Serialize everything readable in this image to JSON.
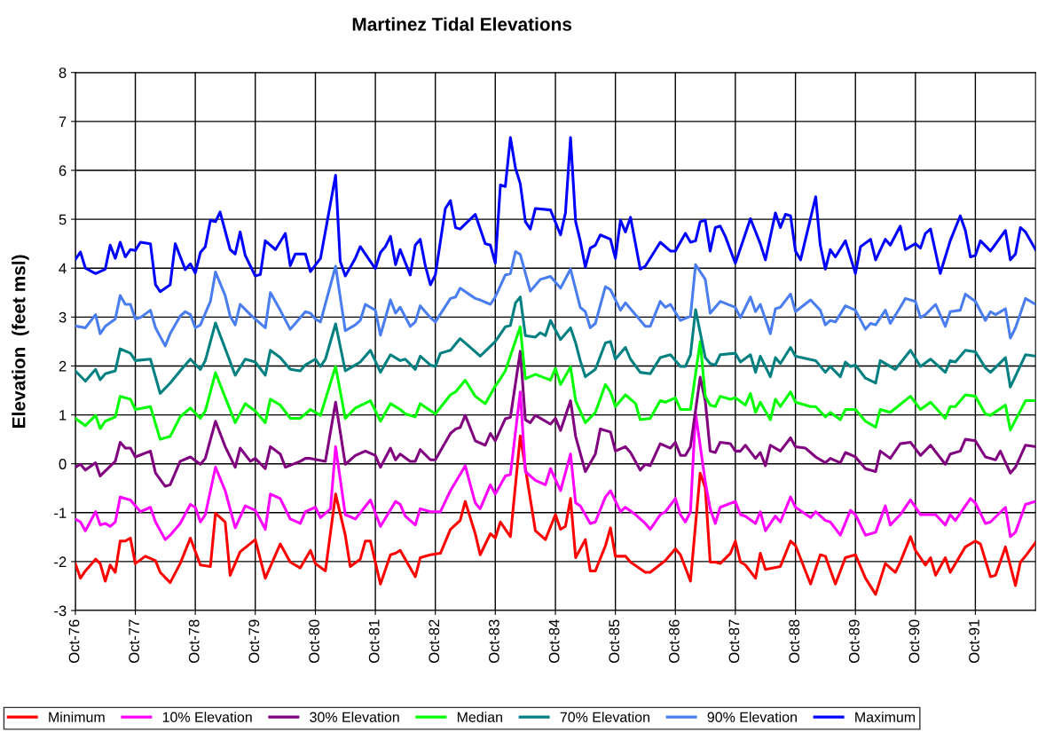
{
  "chart_data": {
    "type": "line",
    "title": "Martinez Tidal Elevations",
    "ylabel": "Elevation  (feet msl)",
    "xlim": [
      "1976-10",
      "1992-10"
    ],
    "xticks": [
      {
        "value": "1976-10",
        "label": "Oct-76"
      },
      {
        "value": "1977-10",
        "label": "Oct-77"
      },
      {
        "value": "1978-10",
        "label": "Oct-78"
      },
      {
        "value": "1979-10",
        "label": "Oct-79"
      },
      {
        "value": "1980-10",
        "label": "Oct-80"
      },
      {
        "value": "1981-10",
        "label": "Oct-81"
      },
      {
        "value": "1982-10",
        "label": "Oct-82"
      },
      {
        "value": "1983-10",
        "label": "Oct-83"
      },
      {
        "value": "1984-10",
        "label": "Oct-84"
      },
      {
        "value": "1985-10",
        "label": "Oct-85"
      },
      {
        "value": "1986-10",
        "label": "Oct-86"
      },
      {
        "value": "1987-10",
        "label": "Oct-87"
      },
      {
        "value": "1988-10",
        "label": "Oct-88"
      },
      {
        "value": "1989-10",
        "label": "Oct-89"
      },
      {
        "value": "1990-10",
        "label": "Oct-90"
      },
      {
        "value": "1991-10",
        "label": "Oct-91"
      }
    ],
    "ylim": [
      -3,
      8
    ],
    "yticks": [
      -3,
      -2,
      -1,
      0,
      1,
      2,
      3,
      4,
      5,
      6,
      7,
      8
    ],
    "grid": true,
    "legend": "bottom",
    "marker": "none",
    "line_style": "solid",
    "series": [
      {
        "name": "Minimum",
        "color": "#ff0000",
        "x": [
          "1976-10",
          "1976-11",
          "1976-12",
          "1977-02",
          "1977-03",
          "1977-04",
          "1977-05",
          "1977-06",
          "1977-07",
          "1977-08",
          "1977-09",
          "1977-10",
          "1977-12",
          "1978-02",
          "1978-03",
          "1978-05",
          "1978-07",
          "1978-09",
          "1978-11",
          "1979-01",
          "1979-02",
          "1979-04",
          "1979-05",
          "1979-07",
          "1979-10",
          "1979-12",
          "1980-03",
          "1980-05",
          "1980-07",
          "1980-09",
          "1980-10",
          "1980-12",
          "1981-02",
          "1981-04",
          "1981-05",
          "1981-07",
          "1981-08",
          "1981-09",
          "1981-11",
          "1982-01",
          "1982-02",
          "1982-03",
          "1982-06",
          "1982-07",
          "1982-09",
          "1982-11",
          "1983-01",
          "1983-03",
          "1983-04",
          "1983-06",
          "1983-07",
          "1983-09",
          "1983-10",
          "1983-11",
          "1984-01",
          "1984-03",
          "1984-06",
          "1984-08",
          "1984-10",
          "1984-11",
          "1984-12",
          "1985-01",
          "1985-02",
          "1985-04",
          "1985-05",
          "1985-06",
          "1985-08",
          "1985-09",
          "1985-10",
          "1985-12",
          "1986-01",
          "1986-04",
          "1986-05",
          "1986-08",
          "1986-10",
          "1986-11",
          "1987-01",
          "1987-03",
          "1987-04",
          "1987-05",
          "1987-06",
          "1987-07",
          "1987-09",
          "1987-10",
          "1987-11",
          "1987-12",
          "1988-02",
          "1988-03",
          "1988-04",
          "1988-07",
          "1988-09",
          "1988-10",
          "1989-01",
          "1989-03",
          "1989-04",
          "1989-06",
          "1989-08",
          "1989-10",
          "1989-12",
          "1990-02",
          "1990-04",
          "1990-06",
          "1990-07",
          "1990-09",
          "1990-10",
          "1990-12",
          "1991-01",
          "1991-02",
          "1991-04",
          "1991-05",
          "1991-08",
          "1991-10",
          "1991-11",
          "1992-01",
          "1992-02",
          "1992-04",
          "1992-06",
          "1992-07",
          "1992-08",
          "1992-10"
        ],
        "values": [
          -2.04,
          -2.34,
          -2.19,
          -1.95,
          -2.04,
          -2.4,
          -2.07,
          -2.22,
          -1.58,
          -1.58,
          -1.52,
          -2.04,
          -1.89,
          -1.98,
          -2.22,
          -2.43,
          -2.04,
          -1.52,
          -2.07,
          -2.1,
          -1.01,
          -1.19,
          -2.28,
          -1.8,
          -1.55,
          -2.34,
          -1.64,
          -2.01,
          -2.13,
          -1.77,
          -2.04,
          -2.19,
          -0.62,
          -1.46,
          -2.1,
          -1.95,
          -1.58,
          -1.58,
          -2.46,
          -1.86,
          -1.83,
          -1.77,
          -2.31,
          -1.92,
          -1.86,
          -1.83,
          -1.34,
          -1.16,
          -0.77,
          -1.43,
          -1.86,
          -1.43,
          -1.52,
          -1.19,
          -1.49,
          0.57,
          -1.37,
          -1.55,
          -1.04,
          -1.34,
          -1.28,
          -0.71,
          -1.92,
          -1.55,
          -2.19,
          -2.19,
          -1.68,
          -1.31,
          -1.89,
          -1.89,
          -2.01,
          -2.22,
          -2.22,
          -1.98,
          -1.74,
          -1.86,
          -2.4,
          -0.19,
          -0.49,
          -2.01,
          -2.01,
          -2.04,
          -1.83,
          -1.58,
          -2.01,
          -2.07,
          -2.34,
          -1.83,
          -2.16,
          -2.1,
          -1.58,
          -1.67,
          -2.46,
          -1.86,
          -1.89,
          -2.46,
          -1.92,
          -1.86,
          -2.34,
          -2.67,
          -2.04,
          -2.22,
          -2.01,
          -1.49,
          -1.77,
          -2.07,
          -1.92,
          -2.28,
          -1.92,
          -2.22,
          -1.7,
          -1.58,
          -1.64,
          -2.31,
          -2.28,
          -1.7,
          -2.49,
          -2.01,
          -1.89,
          -1.61
        ]
      },
      {
        "name": "10% Elevation",
        "color": "#ff00ff",
        "x": [
          "1976-10",
          "1976-11",
          "1976-12",
          "1977-02",
          "1977-03",
          "1977-04",
          "1977-05",
          "1977-06",
          "1977-07",
          "1977-09",
          "1977-11",
          "1978-01",
          "1978-02",
          "1978-04",
          "1978-05",
          "1978-07",
          "1978-09",
          "1978-10",
          "1978-11",
          "1978-12",
          "1979-02",
          "1979-04",
          "1979-06",
          "1979-08",
          "1979-10",
          "1979-12",
          "1980-01",
          "1980-03",
          "1980-05",
          "1980-07",
          "1980-08",
          "1980-10",
          "1980-11",
          "1981-01",
          "1981-02",
          "1981-04",
          "1981-06",
          "1981-09",
          "1981-11",
          "1982-02",
          "1982-03",
          "1982-04",
          "1982-06",
          "1982-07",
          "1982-09",
          "1982-11",
          "1983-01",
          "1983-03",
          "1983-04",
          "1983-06",
          "1983-07",
          "1983-09",
          "1983-10",
          "1983-12",
          "1984-01",
          "1984-03",
          "1984-04",
          "1984-06",
          "1984-08",
          "1984-09",
          "1984-11",
          "1985-01",
          "1985-02",
          "1985-03",
          "1985-05",
          "1985-06",
          "1985-08",
          "1985-09",
          "1985-11",
          "1985-12",
          "1986-02",
          "1986-04",
          "1986-05",
          "1986-07",
          "1986-08",
          "1986-10",
          "1986-11",
          "1986-12",
          "1987-01",
          "1987-02",
          "1987-04",
          "1987-05",
          "1987-06",
          "1987-07",
          "1987-10",
          "1987-11",
          "1987-12",
          "1988-02",
          "1988-03",
          "1988-04",
          "1988-06",
          "1988-07",
          "1988-09",
          "1988-10",
          "1989-01",
          "1989-02",
          "1989-04",
          "1989-05",
          "1989-07",
          "1989-09",
          "1989-10",
          "1989-12",
          "1990-02",
          "1990-04",
          "1990-05",
          "1990-07",
          "1990-09",
          "1990-11",
          "1991-02",
          "1991-04",
          "1991-05",
          "1991-06",
          "1991-09",
          "1991-10",
          "1991-12",
          "1992-01",
          "1992-04",
          "1992-05",
          "1992-06",
          "1992-08",
          "1992-10"
        ],
        "values": [
          -1.13,
          -1.19,
          -1.37,
          -0.98,
          -1.25,
          -1.22,
          -1.28,
          -1.19,
          -0.68,
          -0.74,
          -0.98,
          -0.89,
          -1.19,
          -1.55,
          -1.46,
          -1.22,
          -0.83,
          -0.89,
          -1.19,
          -1.04,
          -0.07,
          -0.55,
          -1.31,
          -0.86,
          -0.95,
          -1.34,
          -0.62,
          -0.71,
          -1.13,
          -1.22,
          -0.98,
          -0.89,
          -1.1,
          -0.92,
          0.35,
          -1.04,
          -1.13,
          -0.74,
          -1.28,
          -0.77,
          -0.83,
          -1.07,
          -1.25,
          -0.92,
          -0.98,
          -0.98,
          -0.55,
          -0.22,
          -0.04,
          -0.8,
          -0.92,
          -0.43,
          -0.62,
          -0.25,
          -0.22,
          1.47,
          -0.16,
          -0.34,
          -0.43,
          -0.1,
          -0.55,
          0.2,
          -0.8,
          -0.86,
          -1.22,
          -1.19,
          -0.68,
          -0.55,
          -0.98,
          -0.89,
          -1.04,
          -1.22,
          -1.34,
          -1.04,
          -0.98,
          -0.71,
          -1.04,
          -1.19,
          -0.98,
          1.04,
          -0.37,
          -0.92,
          -1.22,
          -0.89,
          -0.77,
          -1.04,
          -1.07,
          -1.22,
          -0.98,
          -1.37,
          -1.07,
          -1.19,
          -0.68,
          -0.89,
          -1.1,
          -0.98,
          -1.16,
          -1.19,
          -1.46,
          -0.95,
          -1.04,
          -1.46,
          -1.4,
          -0.86,
          -1.25,
          -1.04,
          -0.74,
          -1.04,
          -1.04,
          -1.25,
          -1.04,
          -1.16,
          -0.71,
          -0.8,
          -1.22,
          -1.19,
          -0.89,
          -1.49,
          -1.4,
          -0.83,
          -0.77
        ]
      },
      {
        "name": "30% Elevation",
        "color": "#800080",
        "x": [
          "1976-10",
          "1976-11",
          "1976-12",
          "1977-02",
          "1977-03",
          "1977-06",
          "1977-07",
          "1977-08",
          "1977-09",
          "1977-10",
          "1978-01",
          "1978-02",
          "1978-04",
          "1978-05",
          "1978-07",
          "1978-09",
          "1978-11",
          "1978-12",
          "1979-02",
          "1979-04",
          "1979-06",
          "1979-07",
          "1979-09",
          "1979-10",
          "1979-12",
          "1980-01",
          "1980-03",
          "1980-04",
          "1980-07",
          "1980-08",
          "1980-09",
          "1980-12",
          "1981-02",
          "1981-04",
          "1981-06",
          "1981-08",
          "1981-10",
          "1981-11",
          "1982-01",
          "1982-02",
          "1982-03",
          "1982-05",
          "1982-06",
          "1982-07",
          "1982-09",
          "1982-10",
          "1983-01",
          "1983-02",
          "1983-03",
          "1983-04",
          "1983-06",
          "1983-08",
          "1983-09",
          "1983-10",
          "1983-12",
          "1984-01",
          "1984-03",
          "1984-04",
          "1984-05",
          "1984-06",
          "1984-09",
          "1984-10",
          "1984-11",
          "1985-01",
          "1985-02",
          "1985-04",
          "1985-06",
          "1985-07",
          "1985-09",
          "1985-10",
          "1985-12",
          "1986-01",
          "1986-03",
          "1986-04",
          "1986-05",
          "1986-07",
          "1986-09",
          "1986-10",
          "1986-11",
          "1986-12",
          "1987-01",
          "1987-03",
          "1987-04",
          "1987-05",
          "1987-06",
          "1987-07",
          "1987-09",
          "1987-10",
          "1987-11",
          "1987-12",
          "1988-02",
          "1988-03",
          "1988-04",
          "1988-05",
          "1988-07",
          "1988-09",
          "1988-10",
          "1988-12",
          "1989-01",
          "1989-02",
          "1989-04",
          "1989-05",
          "1989-07",
          "1989-08",
          "1989-10",
          "1989-12",
          "1990-02",
          "1990-03",
          "1990-05",
          "1990-07",
          "1990-09",
          "1990-11",
          "1991-01",
          "1991-04",
          "1991-05",
          "1991-07",
          "1991-08",
          "1991-10",
          "1991-12",
          "1992-01",
          "1992-02",
          "1992-03",
          "1992-05",
          "1992-06",
          "1992-08",
          "1992-10"
        ],
        "values": [
          -0.07,
          -0.01,
          -0.13,
          0.02,
          -0.25,
          0.05,
          0.44,
          0.32,
          0.32,
          0.14,
          0.26,
          -0.19,
          -0.46,
          -0.43,
          0.05,
          0.14,
          -0.01,
          0.11,
          0.87,
          0.35,
          -0.07,
          0.32,
          0.05,
          0.11,
          -0.1,
          0.35,
          0.2,
          -0.07,
          0.05,
          0.11,
          0.11,
          0.05,
          1.26,
          -0.01,
          0.17,
          0.26,
          0.17,
          -0.07,
          0.32,
          0.08,
          0.2,
          0.05,
          0.05,
          0.29,
          0.08,
          0.08,
          0.62,
          0.71,
          0.74,
          0.99,
          0.47,
          0.38,
          0.62,
          0.47,
          0.92,
          0.95,
          2.3,
          0.9,
          0.84,
          0.99,
          0.81,
          0.93,
          0.68,
          1.29,
          0.56,
          -0.16,
          0.2,
          0.71,
          0.65,
          0.26,
          0.35,
          0.23,
          -0.13,
          -0.01,
          -0.04,
          0.41,
          0.32,
          0.44,
          0.17,
          0.17,
          0.35,
          1.77,
          1.29,
          0.26,
          0.23,
          0.44,
          0.41,
          0.26,
          0.26,
          0.38,
          0.11,
          0.23,
          -0.04,
          0.38,
          0.26,
          0.53,
          0.35,
          0.32,
          0.23,
          0.14,
          0.02,
          0.11,
          0.02,
          0.23,
          0.14,
          -0.1,
          -0.16,
          0.26,
          0.11,
          0.41,
          0.44,
          0.17,
          0.38,
          -0.01,
          0.2,
          0.26,
          0.5,
          0.47,
          0.14,
          0.11,
          0.08,
          0.26,
          -0.19,
          -0.07,
          0.38,
          0.35
        ]
      },
      {
        "name": "Median",
        "color": "#00ff00",
        "x": [
          "1976-10",
          "1976-12",
          "1977-02",
          "1977-03",
          "1977-04",
          "1977-06",
          "1977-07",
          "1977-09",
          "1977-10",
          "1978-01",
          "1978-03",
          "1978-05",
          "1978-07",
          "1978-09",
          "1978-11",
          "1978-12",
          "1979-02",
          "1979-06",
          "1979-08",
          "1979-10",
          "1979-12",
          "1980-01",
          "1980-03",
          "1980-05",
          "1980-07",
          "1980-09",
          "1980-11",
          "1981-02",
          "1981-04",
          "1981-06",
          "1981-09",
          "1981-11",
          "1982-01",
          "1982-03",
          "1982-04",
          "1982-06",
          "1982-07",
          "1982-10",
          "1983-01",
          "1983-02",
          "1983-04",
          "1983-06",
          "1983-08",
          "1983-10",
          "1983-11",
          "1983-12",
          "1984-03",
          "1984-04",
          "1984-06",
          "1984-09",
          "1984-10",
          "1984-11",
          "1985-01",
          "1985-02",
          "1985-04",
          "1985-06",
          "1985-08",
          "1985-09",
          "1985-10",
          "1985-12",
          "1986-02",
          "1986-03",
          "1986-05",
          "1986-07",
          "1986-08",
          "1986-10",
          "1986-11",
          "1987-01",
          "1987-03",
          "1987-04",
          "1987-05",
          "1987-06",
          "1987-07",
          "1987-09",
          "1987-10",
          "1987-12",
          "1988-01",
          "1988-02",
          "1988-03",
          "1988-05",
          "1988-06",
          "1988-07",
          "1988-09",
          "1988-10",
          "1989-01",
          "1989-02",
          "1989-04",
          "1989-05",
          "1989-07",
          "1989-08",
          "1989-10",
          "1989-12",
          "1990-02",
          "1990-03",
          "1990-05",
          "1990-09",
          "1990-11",
          "1991-01",
          "1991-04",
          "1991-05",
          "1991-06",
          "1991-08",
          "1991-10",
          "1991-12",
          "1992-01",
          "1992-04",
          "1992-05",
          "1992-08",
          "1992-10"
        ],
        "values": [
          0.93,
          0.78,
          0.99,
          0.72,
          0.87,
          0.96,
          1.38,
          1.32,
          1.11,
          1.17,
          0.5,
          0.56,
          0.96,
          1.14,
          0.93,
          1.08,
          1.86,
          0.84,
          1.23,
          1.08,
          0.84,
          1.32,
          1.2,
          0.93,
          0.93,
          1.11,
          0.99,
          1.99,
          0.93,
          1.14,
          1.29,
          0.87,
          1.23,
          1.11,
          1.02,
          0.96,
          1.23,
          1.02,
          1.41,
          1.47,
          1.71,
          1.38,
          1.23,
          1.59,
          1.74,
          1.9,
          2.8,
          1.74,
          1.83,
          1.71,
          1.95,
          1.62,
          1.98,
          1.29,
          0.84,
          1.05,
          1.62,
          1.47,
          1.17,
          1.41,
          1.23,
          0.9,
          0.93,
          1.29,
          1.26,
          1.35,
          1.11,
          1.11,
          2.5,
          1.38,
          1.2,
          1.17,
          1.38,
          1.32,
          1.35,
          1.2,
          1.44,
          1.05,
          1.26,
          0.9,
          1.32,
          1.17,
          1.47,
          1.26,
          1.17,
          1.17,
          0.96,
          1.05,
          0.9,
          1.11,
          1.11,
          0.87,
          0.75,
          1.11,
          1.05,
          1.38,
          1.11,
          1.26,
          0.93,
          1.17,
          1.17,
          1.41,
          1.38,
          1.02,
          0.99,
          1.2,
          0.69,
          1.29,
          1.29
        ]
      },
      {
        "name": "70% Elevation",
        "color": "#008080",
        "x": [
          "1976-10",
          "1976-12",
          "1977-02",
          "1977-03",
          "1977-04",
          "1977-06",
          "1977-07",
          "1977-09",
          "1977-10",
          "1978-01",
          "1978-03",
          "1978-05",
          "1978-07",
          "1978-09",
          "1978-11",
          "1978-12",
          "1979-02",
          "1979-06",
          "1979-08",
          "1979-10",
          "1979-12",
          "1980-01",
          "1980-03",
          "1980-05",
          "1980-07",
          "1980-08",
          "1980-10",
          "1980-11",
          "1980-12",
          "1981-02",
          "1981-04",
          "1981-06",
          "1981-07",
          "1981-09",
          "1981-11",
          "1982-01",
          "1982-03",
          "1982-04",
          "1982-06",
          "1982-07",
          "1982-09",
          "1982-10",
          "1982-11",
          "1983-01",
          "1983-03",
          "1983-06",
          "1983-07",
          "1983-10",
          "1983-12",
          "1984-01",
          "1984-02",
          "1984-03",
          "1984-04",
          "1984-06",
          "1984-07",
          "1984-08",
          "1984-09",
          "1984-11",
          "1985-01",
          "1985-02",
          "1985-03",
          "1985-04",
          "1985-06",
          "1985-08",
          "1985-09",
          "1985-10",
          "1985-12",
          "1986-01",
          "1986-03",
          "1986-05",
          "1986-07",
          "1986-09",
          "1986-11",
          "1986-12",
          "1987-01",
          "1987-02",
          "1987-04",
          "1987-05",
          "1987-06",
          "1987-07",
          "1987-10",
          "1987-11",
          "1988-01",
          "1988-02",
          "1988-03",
          "1988-05",
          "1988-06",
          "1988-07",
          "1988-09",
          "1988-10",
          "1989-02",
          "1989-04",
          "1989-05",
          "1989-07",
          "1989-08",
          "1989-09",
          "1989-10",
          "1989-12",
          "1990-02",
          "1990-03",
          "1990-06",
          "1990-09",
          "1990-11",
          "1991-01",
          "1991-04",
          "1991-05",
          "1991-06",
          "1991-08",
          "1991-10",
          "1991-12",
          "1992-01",
          "1992-04",
          "1992-05",
          "1992-08",
          "1992-10"
        ],
        "values": [
          1.9,
          1.69,
          1.93,
          1.72,
          1.84,
          1.9,
          2.35,
          2.26,
          2.11,
          2.14,
          1.44,
          1.65,
          1.9,
          2.14,
          1.93,
          2.11,
          2.88,
          1.81,
          2.14,
          2.08,
          1.81,
          2.32,
          2.17,
          1.93,
          1.9,
          2.02,
          2.14,
          1.99,
          2.14,
          2.86,
          1.9,
          2.02,
          2.08,
          2.32,
          1.87,
          2.23,
          2.11,
          2.14,
          1.93,
          2.2,
          2.02,
          1.99,
          2.26,
          2.32,
          2.56,
          2.29,
          2.2,
          2.5,
          2.8,
          2.83,
          3.29,
          3.41,
          2.62,
          2.59,
          2.68,
          2.62,
          2.93,
          2.54,
          2.78,
          2.47,
          2.11,
          1.78,
          1.93,
          2.47,
          2.5,
          2.14,
          2.38,
          2.14,
          1.87,
          1.84,
          2.17,
          2.23,
          1.99,
          1.99,
          2.23,
          3.15,
          2.17,
          2.05,
          2.02,
          2.23,
          2.26,
          2.08,
          2.23,
          1.87,
          2.2,
          1.78,
          2.17,
          2.05,
          2.38,
          2.2,
          2.11,
          1.87,
          1.99,
          1.78,
          2.08,
          1.99,
          2.02,
          1.75,
          1.65,
          2.11,
          1.93,
          2.32,
          1.99,
          2.14,
          1.87,
          2.11,
          2.08,
          2.32,
          2.29,
          1.96,
          1.87,
          2.17,
          1.57,
          2.23,
          2.2
        ]
      },
      {
        "name": "90% Elevation",
        "color": "#4a7ef0",
        "x": [
          "1976-10",
          "1976-12",
          "1977-02",
          "1977-03",
          "1977-04",
          "1977-06",
          "1977-07",
          "1977-08",
          "1977-09",
          "1977-10",
          "1977-11",
          "1978-01",
          "1978-02",
          "1978-04",
          "1978-05",
          "1978-07",
          "1978-08",
          "1978-09",
          "1978-10",
          "1978-11",
          "1979-01",
          "1979-02",
          "1979-04",
          "1979-05",
          "1979-06",
          "1979-07",
          "1979-09",
          "1979-10",
          "1979-12",
          "1980-01",
          "1980-03",
          "1980-05",
          "1980-06",
          "1980-08",
          "1980-09",
          "1980-10",
          "1980-11",
          "1981-02",
          "1981-04",
          "1981-06",
          "1981-07",
          "1981-08",
          "1981-10",
          "1981-11",
          "1982-01",
          "1982-02",
          "1982-03",
          "1982-05",
          "1982-06",
          "1982-07",
          "1982-09",
          "1982-10",
          "1983-01",
          "1983-02",
          "1983-03",
          "1983-06",
          "1983-07",
          "1983-09",
          "1983-10",
          "1983-12",
          "1984-01",
          "1984-02",
          "1984-03",
          "1984-05",
          "1984-07",
          "1984-08",
          "1984-09",
          "1984-11",
          "1985-01",
          "1985-03",
          "1985-04",
          "1985-05",
          "1985-06",
          "1985-08",
          "1985-09",
          "1985-11",
          "1985-12",
          "1986-04",
          "1986-05",
          "1986-07",
          "1986-08",
          "1986-09",
          "1986-11",
          "1987-01",
          "1987-02",
          "1987-04",
          "1987-05",
          "1987-07",
          "1987-10",
          "1987-11",
          "1988-01",
          "1988-02",
          "1988-03",
          "1988-05",
          "1988-06",
          "1988-07",
          "1988-09",
          "1988-10",
          "1989-01",
          "1989-03",
          "1989-04",
          "1989-05",
          "1989-06",
          "1989-08",
          "1989-10",
          "1989-12",
          "1990-01",
          "1990-02",
          "1990-04",
          "1990-05",
          "1990-07",
          "1990-08",
          "1990-10",
          "1990-11",
          "1990-12",
          "1991-02",
          "1991-04",
          "1991-05",
          "1991-07",
          "1991-08",
          "1991-10",
          "1991-12",
          "1992-01",
          "1992-02",
          "1992-04",
          "1992-05",
          "1992-06",
          "1992-08",
          "1992-10"
        ],
        "values": [
          2.82,
          2.78,
          3.05,
          2.66,
          2.81,
          2.96,
          3.44,
          3.26,
          3.26,
          2.96,
          2.99,
          3.14,
          2.78,
          2.41,
          2.66,
          3.02,
          3.11,
          3.05,
          2.78,
          2.84,
          3.32,
          3.92,
          3.44,
          3.02,
          2.84,
          3.26,
          3.05,
          2.96,
          2.78,
          3.5,
          3.14,
          2.75,
          2.87,
          3.11,
          3.08,
          2.96,
          2.9,
          4.04,
          2.72,
          2.84,
          2.93,
          3.26,
          3.14,
          2.63,
          3.35,
          3.08,
          3.2,
          2.81,
          2.9,
          3.23,
          2.99,
          2.9,
          3.38,
          3.41,
          3.59,
          3.38,
          3.35,
          3.26,
          3.41,
          3.86,
          3.89,
          4.34,
          4.28,
          3.53,
          3.77,
          3.8,
          3.83,
          3.59,
          3.98,
          3.2,
          3.11,
          2.78,
          2.87,
          3.62,
          3.56,
          3.14,
          3.29,
          2.81,
          2.81,
          3.32,
          3.2,
          3.26,
          2.93,
          3.02,
          4.07,
          3.77,
          3.08,
          3.32,
          3.2,
          2.99,
          3.41,
          3.11,
          3.26,
          2.66,
          3.17,
          3.2,
          3.47,
          3.11,
          3.35,
          3.14,
          2.84,
          2.93,
          2.9,
          3.23,
          3.14,
          2.75,
          2.87,
          2.84,
          3.14,
          2.87,
          3.2,
          3.38,
          3.32,
          2.99,
          3.05,
          3.26,
          2.81,
          3.11,
          3.14,
          3.47,
          3.32,
          2.93,
          3.11,
          3.05,
          3.17,
          2.57,
          2.78,
          3.38,
          3.26
        ]
      },
      {
        "name": "Maximum",
        "color": "#0000ff",
        "x": [
          "1976-10",
          "1976-11",
          "1976-12",
          "1977-02",
          "1977-04",
          "1977-05",
          "1977-06",
          "1977-07",
          "1977-08",
          "1977-09",
          "1977-10",
          "1977-11",
          "1978-01",
          "1978-02",
          "1978-03",
          "1978-05",
          "1978-06",
          "1978-08",
          "1978-09",
          "1978-10",
          "1978-11",
          "1978-12",
          "1979-01",
          "1979-02",
          "1979-03",
          "1979-05",
          "1979-06",
          "1979-07",
          "1979-08",
          "1979-10",
          "1979-11",
          "1979-12",
          "1980-02",
          "1980-04",
          "1980-05",
          "1980-06",
          "1980-08",
          "1980-09",
          "1980-11",
          "1981-02",
          "1981-03",
          "1981-04",
          "1981-06",
          "1981-07",
          "1981-10",
          "1981-11",
          "1981-12",
          "1982-01",
          "1982-02",
          "1982-03",
          "1982-05",
          "1982-06",
          "1982-07",
          "1982-08",
          "1982-09",
          "1982-10",
          "1982-12",
          "1983-01",
          "1983-02",
          "1983-03",
          "1983-06",
          "1983-08",
          "1983-09",
          "1983-10",
          "1983-11",
          "1983-12",
          "1984-01",
          "1984-02",
          "1984-03",
          "1984-04",
          "1984-05",
          "1984-06",
          "1984-09",
          "1984-11",
          "1984-12",
          "1985-01",
          "1985-02",
          "1985-03",
          "1985-04",
          "1985-05",
          "1985-06",
          "1985-07",
          "1985-09",
          "1985-10",
          "1985-11",
          "1985-12",
          "1986-01",
          "1986-03",
          "1986-04",
          "1986-07",
          "1986-09",
          "1986-10",
          "1986-12",
          "1987-01",
          "1987-02",
          "1987-03",
          "1987-04",
          "1987-05",
          "1987-06",
          "1987-07",
          "1987-08",
          "1987-10",
          "1988-01",
          "1988-03",
          "1988-04",
          "1988-06",
          "1988-07",
          "1988-08",
          "1988-09",
          "1988-10",
          "1988-11",
          "1989-02",
          "1989-03",
          "1989-04",
          "1989-05",
          "1989-06",
          "1989-08",
          "1989-10",
          "1989-11",
          "1990-01",
          "1990-02",
          "1990-04",
          "1990-05",
          "1990-07",
          "1990-08",
          "1990-10",
          "1990-11",
          "1990-12",
          "1991-01",
          "1991-03",
          "1991-04",
          "1991-05",
          "1991-07",
          "1991-08",
          "1991-09",
          "1991-10",
          "1991-11",
          "1992-01",
          "1992-04",
          "1992-05",
          "1992-06",
          "1992-07",
          "1992-08",
          "1992-10"
        ],
        "values": [
          4.18,
          4.33,
          4.0,
          3.89,
          3.98,
          4.47,
          4.2,
          4.53,
          4.23,
          4.38,
          4.36,
          4.53,
          4.5,
          3.66,
          3.52,
          3.66,
          4.5,
          3.97,
          4.09,
          3.9,
          4.32,
          4.44,
          4.98,
          4.95,
          5.15,
          4.38,
          4.29,
          4.74,
          4.26,
          3.84,
          3.87,
          4.56,
          4.38,
          4.71,
          4.05,
          4.29,
          4.29,
          3.93,
          4.2,
          5.9,
          4.14,
          3.84,
          4.2,
          4.44,
          3.99,
          4.32,
          4.44,
          4.65,
          4.07,
          4.38,
          3.86,
          4.47,
          4.59,
          4.05,
          3.66,
          3.86,
          5.22,
          5.38,
          4.83,
          4.8,
          5.1,
          4.5,
          4.47,
          4.1,
          5.7,
          5.67,
          6.67,
          6.04,
          5.73,
          4.95,
          4.8,
          5.22,
          5.19,
          4.68,
          5.13,
          6.67,
          4.95,
          4.56,
          4.02,
          4.41,
          4.47,
          4.68,
          4.59,
          4.2,
          4.98,
          4.74,
          5.04,
          3.98,
          4.04,
          4.53,
          4.35,
          4.35,
          4.71,
          4.53,
          4.56,
          4.95,
          4.98,
          4.35,
          4.83,
          4.86,
          4.65,
          4.1,
          5.01,
          4.5,
          4.17,
          5.13,
          4.83,
          5.1,
          5.07,
          4.35,
          4.17,
          5.46,
          4.47,
          3.98,
          4.38,
          4.23,
          4.56,
          3.89,
          4.44,
          4.59,
          4.17,
          4.59,
          4.47,
          4.86,
          4.38,
          4.5,
          4.41,
          4.71,
          4.8,
          3.89,
          4.23,
          4.56,
          5.07,
          4.77,
          4.23,
          4.26,
          4.56,
          4.35,
          4.77,
          4.17,
          4.29,
          4.83,
          4.74,
          4.38
        ]
      }
    ]
  }
}
